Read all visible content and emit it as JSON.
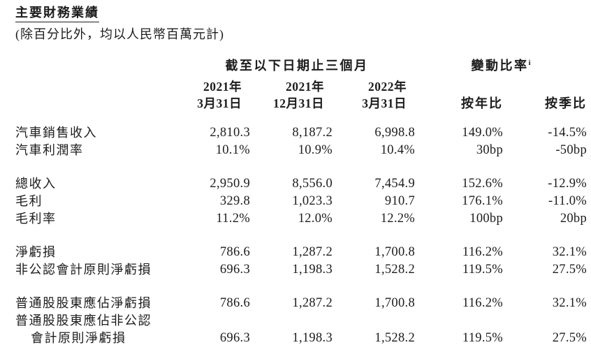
{
  "page": {
    "title": "主要財務業績",
    "subtitle": "(除百分比外，均以人民幣百萬元計)"
  },
  "colors": {
    "text": "#1c1c1c",
    "background": "#ffffff"
  },
  "table": {
    "header": {
      "period_group": "截至以下日期止三個月",
      "change_group": "變動比率",
      "footnote_marker": "i",
      "period_columns": [
        {
          "year": "2021年",
          "date": "3月31日"
        },
        {
          "year": "2021年",
          "date": "12月31日"
        },
        {
          "year": "2022年",
          "date": "3月31日"
        }
      ],
      "change_columns": [
        "按年比",
        "按季比"
      ]
    },
    "rows": [
      {
        "label": "汽車銷售收入",
        "values": [
          "2,810.3",
          "8,187.2",
          "6,998.8",
          "149.0%",
          "-14.5%"
        ]
      },
      {
        "label": "汽車利潤率",
        "values": [
          "10.1%",
          "10.9%",
          "10.4%",
          "30bp",
          "-50bp"
        ]
      },
      {
        "label": "總收入",
        "values": [
          "2,950.9",
          "8,556.0",
          "7,454.9",
          "152.6%",
          "-12.9%"
        ]
      },
      {
        "label": "毛利",
        "values": [
          "329.8",
          "1,023.3",
          "910.7",
          "176.1%",
          "-11.0%"
        ]
      },
      {
        "label": "毛利率",
        "values": [
          "11.2%",
          "12.0%",
          "12.2%",
          "100bp",
          "20bp"
        ]
      },
      {
        "label": "淨虧損",
        "values": [
          "786.6",
          "1,287.2",
          "1,700.8",
          "116.2%",
          "32.1%"
        ]
      },
      {
        "label": "非公認會計原則淨虧損",
        "values": [
          "696.3",
          "1,198.3",
          "1,528.2",
          "119.5%",
          "27.5%"
        ]
      },
      {
        "label": "普通股股東應佔淨虧損",
        "values": [
          "786.6",
          "1,287.2",
          "1,700.8",
          "116.2%",
          "32.1%"
        ]
      },
      {
        "label": "普通股股東應佔非公認",
        "values": [
          "",
          "",
          "",
          "",
          ""
        ]
      },
      {
        "label": "會計原則淨虧損",
        "values": [
          "696.3",
          "1,198.3",
          "1,528.2",
          "119.5%",
          "27.5%"
        ]
      }
    ]
  }
}
